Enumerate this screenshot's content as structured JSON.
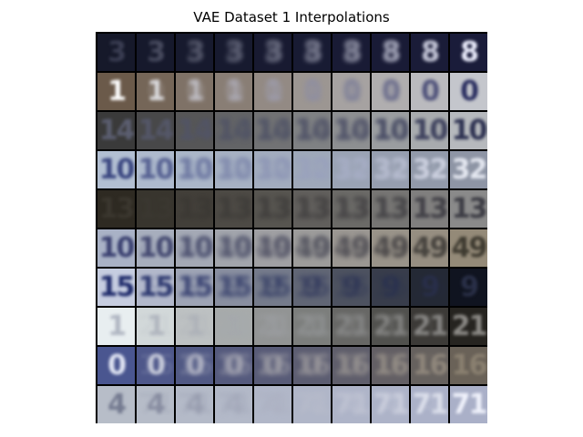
{
  "figure": {
    "title": "VAE Dataset 1 Interpolations"
  },
  "grid": {
    "rows": 10,
    "cols": 10,
    "rows_data": [
      {
        "bg_start": "#16192a",
        "bg_end": "#1a1c3a",
        "fg_start": "#3a3d52",
        "fg_end": "#eef0ff",
        "glyph_start": "3",
        "glyph_end": "8"
      },
      {
        "bg_start": "#6b5a4a",
        "bg_end": "#c4c6cc",
        "fg_start": "#ffffff",
        "fg_end": "#2a2e60",
        "glyph_start": "1",
        "glyph_end": "0"
      },
      {
        "bg_start": "#3a3a3a",
        "bg_end": "#b6b9bd",
        "fg_start": "#5b5e70",
        "fg_end": "#2c3050",
        "glyph_start": "14",
        "glyph_end": "10"
      },
      {
        "bg_start": "#b2bfd2",
        "bg_end": "#8e95a5",
        "fg_start": "#3a4680",
        "fg_end": "#e4e7f0",
        "glyph_start": "10",
        "glyph_end": "32"
      },
      {
        "bg_start": "#2e2a22",
        "bg_end": "#8a8a8a",
        "fg_start": "#3b372f",
        "fg_end": "#3c3c44",
        "glyph_start": "13",
        "glyph_end": "13"
      },
      {
        "bg_start": "#a9b2c6",
        "bg_end": "#948a78",
        "fg_start": "#3a4070",
        "fg_end": "#3e3a30",
        "glyph_start": "10",
        "glyph_end": "49"
      },
      {
        "bg_start": "#c6cde0",
        "bg_end": "#101420",
        "fg_start": "#1e2a6a",
        "fg_end": "#2a3048",
        "glyph_start": "15",
        "glyph_end": "9"
      },
      {
        "bg_start": "#e8eef0",
        "bg_end": "#262420",
        "fg_start": "#b0b6c2",
        "fg_end": "#8c8a86",
        "glyph_start": "1",
        "glyph_end": "21"
      },
      {
        "bg_start": "#4a5690",
        "bg_end": "#6a6258",
        "fg_start": "#e2e6f4",
        "fg_end": "#8a8070",
        "glyph_start": "0",
        "glyph_end": "16"
      },
      {
        "bg_start": "#b7bdc8",
        "bg_end": "#aab0c8",
        "fg_start": "#747a90",
        "fg_end": "#f0f2fb",
        "glyph_start": "4",
        "glyph_end": "71"
      }
    ]
  }
}
